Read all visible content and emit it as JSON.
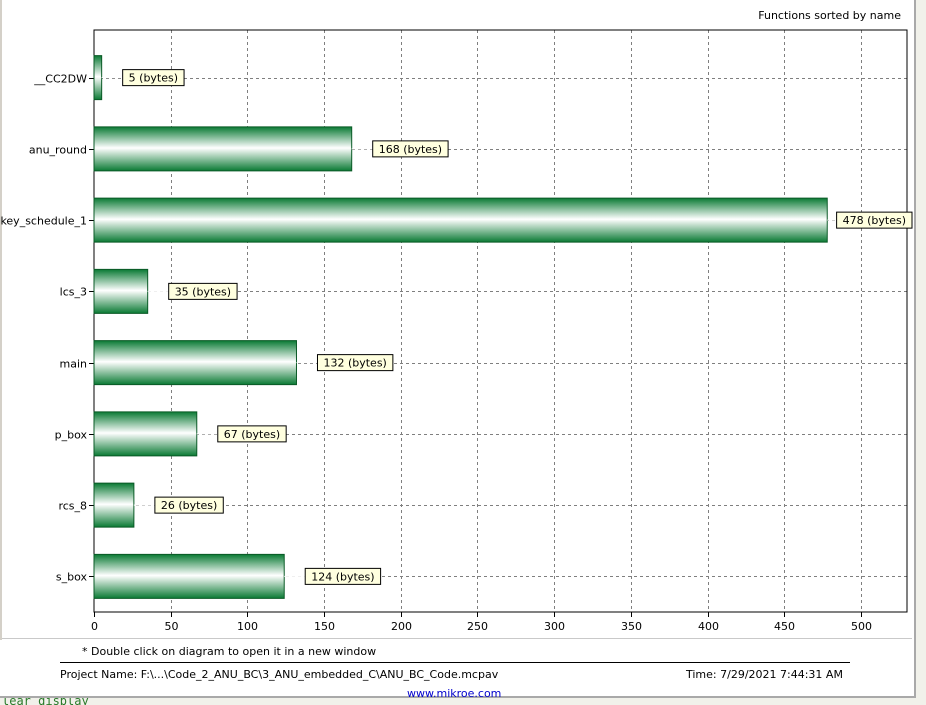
{
  "background": {
    "editor_fragment": "lear display"
  },
  "chart_data": {
    "type": "bar",
    "orientation": "horizontal",
    "title": "Functions sorted by name",
    "categories": [
      "__CC2DW",
      "anu_round",
      "key_schedule_1",
      "lcs_3",
      "main",
      "p_box",
      "rcs_8",
      "s_box"
    ],
    "values": [
      5,
      168,
      478,
      35,
      132,
      67,
      26,
      124
    ],
    "value_labels": [
      "5 (bytes)",
      "168 (bytes)",
      "478 (bytes)",
      "35 (bytes)",
      "132 (bytes)",
      "67 (bytes)",
      "26 (bytes)",
      "124 (bytes)"
    ],
    "xlim": [
      0,
      530
    ],
    "xticks": [
      0,
      50,
      100,
      150,
      200,
      250,
      300,
      350,
      400,
      450,
      500
    ],
    "grid": true,
    "bar_color": "#0a8a3a"
  },
  "footer": {
    "note": "* Double click on diagram to open it in a new window",
    "project_name": "Project Name: F:\\...\\Code_2_ANU_BC\\3_ANU_embedded_C\\ANU_BC_Code.mcpav",
    "time": "Time: 7/29/2021 7:44:31 AM",
    "link": "www.mikroe.com"
  }
}
